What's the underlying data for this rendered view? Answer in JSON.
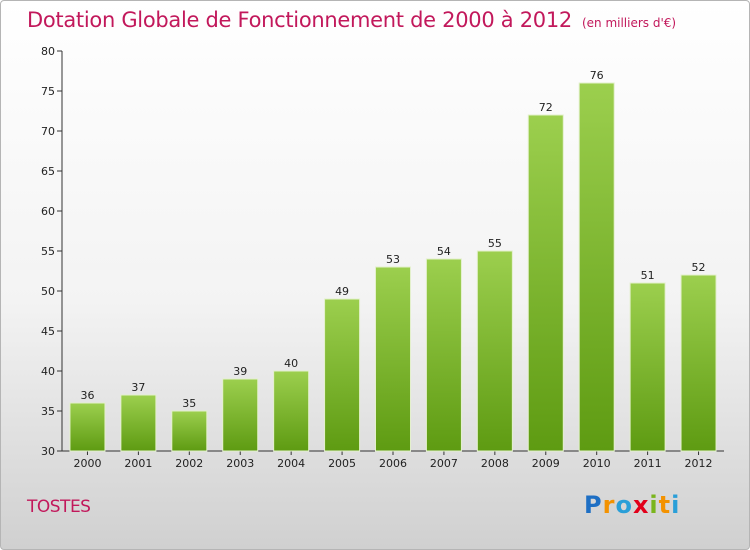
{
  "title": "Dotation Globale de Fonctionnement de 2000 à 2012",
  "unit": "(en milliers d'€)",
  "commune": "TOSTES",
  "logo": {
    "letters": [
      "P",
      "r",
      "o",
      "x",
      "i",
      "t",
      "i"
    ],
    "colors": [
      "#1e6fc4",
      "#f39200",
      "#2a9fd8",
      "#e2001a",
      "#7ab51d",
      "#f39200",
      "#2a9fd8"
    ]
  },
  "colors": {
    "bar_top": "#9ccf4e",
    "bar_bottom": "#5e9b12",
    "accent": "#c2185b"
  },
  "chart_data": {
    "type": "bar",
    "title": "Dotation Globale de Fonctionnement de 2000 à 2012",
    "xlabel": "",
    "ylabel": "",
    "categories": [
      "2000",
      "2001",
      "2002",
      "2003",
      "2004",
      "2005",
      "2006",
      "2007",
      "2008",
      "2009",
      "2010",
      "2011",
      "2012"
    ],
    "values": [
      36,
      37,
      35,
      39,
      40,
      49,
      53,
      54,
      55,
      72,
      76,
      51,
      52
    ],
    "ylim": [
      30,
      80
    ],
    "yticks": [
      30,
      35,
      40,
      45,
      50,
      55,
      60,
      65,
      70,
      75,
      80
    ],
    "grid": false,
    "data_labels": true
  }
}
